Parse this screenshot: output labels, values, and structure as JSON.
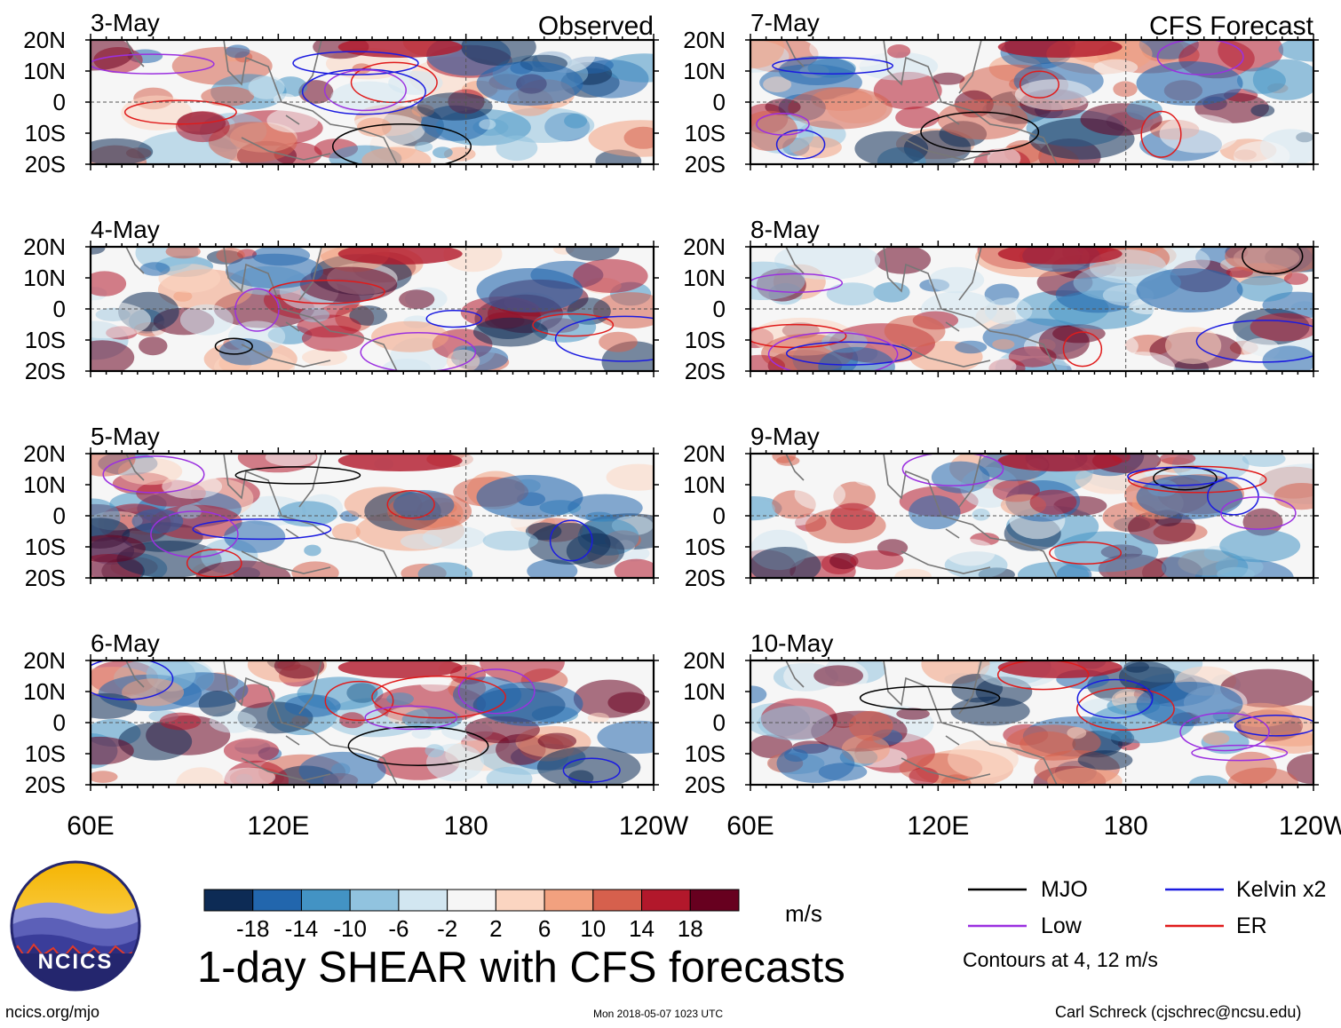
{
  "chart_data": {
    "type": "heatmap",
    "title": "1-day SHEAR with CFS forecasts",
    "panel_groups": {
      "left": "Observed",
      "right": "CFS Forecast"
    },
    "panels": [
      {
        "date": "3-May",
        "column": "left",
        "row": 0
      },
      {
        "date": "4-May",
        "column": "left",
        "row": 1
      },
      {
        "date": "5-May",
        "column": "left",
        "row": 2
      },
      {
        "date": "6-May",
        "column": "left",
        "row": 3
      },
      {
        "date": "7-May",
        "column": "right",
        "row": 0
      },
      {
        "date": "8-May",
        "column": "right",
        "row": 1
      },
      {
        "date": "9-May",
        "column": "right",
        "row": 2
      },
      {
        "date": "10-May",
        "column": "right",
        "row": 3
      }
    ],
    "y_ticks": [
      "20N",
      "10N",
      "0",
      "10S",
      "20S"
    ],
    "x_ticks": [
      "60E",
      "120E",
      "180",
      "120W"
    ],
    "x_range_lon": [
      60,
      240
    ],
    "y_range_lat": [
      -20,
      20
    ],
    "colorbar": {
      "units": "m/s",
      "tick_labels": [
        "-18",
        "-14",
        "-10",
        "-6",
        "-2",
        "2",
        "6",
        "10",
        "14",
        "18"
      ],
      "colors": [
        "#0d2b55",
        "#2266ad",
        "#4393c4",
        "#91c3df",
        "#d2e6f1",
        "#f6f6f6",
        "#fbd5c1",
        "#f2a17f",
        "#d6604d",
        "#b2182b",
        "#67001f"
      ]
    },
    "legend": [
      {
        "label": "MJO",
        "color": "#000000"
      },
      {
        "label": "Kelvin x2",
        "color": "#1b1be0"
      },
      {
        "label": "Low",
        "color": "#9b30e0"
      },
      {
        "label": "ER",
        "color": "#e01b1b"
      }
    ],
    "contour_note": "Contours at 4, 12 m/s"
  },
  "logo_text": "NCICS",
  "footer": {
    "left": "ncics.org/mjo",
    "center": "Mon 2018-05-07 1023 UTC",
    "right": "Carl Schreck (cjschrec@ncsu.edu)"
  }
}
